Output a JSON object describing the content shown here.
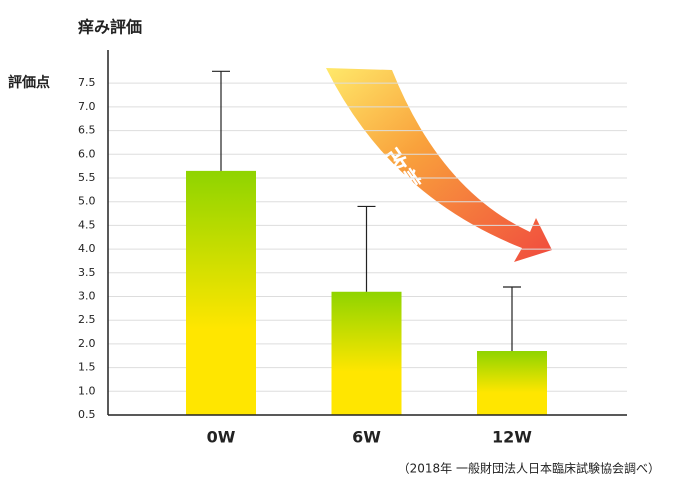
{
  "chart_data": {
    "type": "bar",
    "title": "痒み評価",
    "y_label": "評価点",
    "categories": [
      "0W",
      "6W",
      "12W"
    ],
    "values": [
      5.65,
      3.1,
      1.85
    ],
    "errors": [
      2.1,
      1.8,
      1.35
    ],
    "color": [
      "#8fd400",
      "#ffe600"
    ],
    "ylim": [
      0.5,
      8.2
    ],
    "yticks": [
      0.5,
      {
        "value": 1,
        "label": "1.0"
      },
      1.5,
      {
        "value": 2,
        "label": "2.0"
      },
      2.5,
      {
        "value": 3,
        "label": "3.0"
      },
      3.5,
      {
        "value": 4,
        "label": "4.0"
      },
      4.5,
      {
        "value": 5,
        "label": "5.0"
      },
      5.5,
      {
        "value": 6,
        "label": "6.0"
      },
      6.5,
      {
        "value": 7,
        "label": "7.0"
      },
      7.5
    ],
    "grid": true,
    "annotation": "改善",
    "source": "（2018年 一般財団法人日本臨床試験協会調べ）"
  }
}
